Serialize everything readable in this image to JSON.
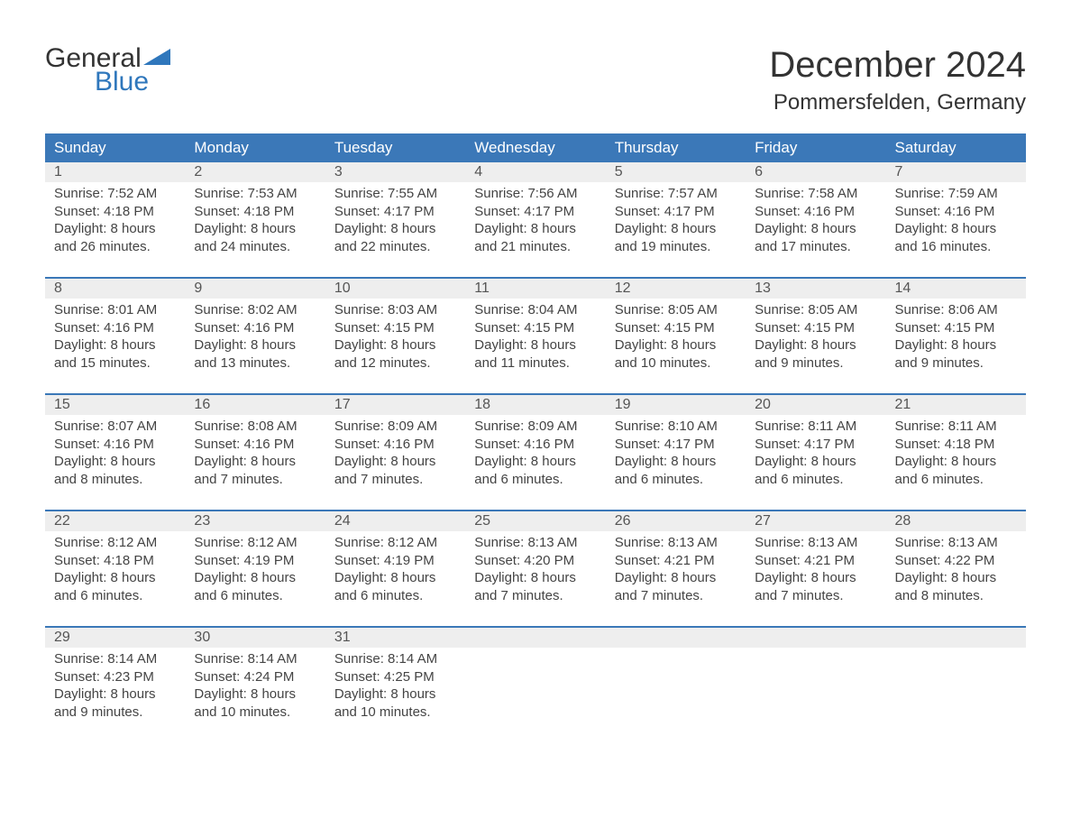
{
  "brand": {
    "part1": "General",
    "part2": "Blue",
    "triangle_color": "#2f77bc"
  },
  "header": {
    "title": "December 2024",
    "location": "Pommersfelden, Germany"
  },
  "colors": {
    "header_bg": "#3b78b8",
    "header_fg": "#ffffff",
    "daynum_bg": "#eeeeee",
    "daynum_fg": "#555555",
    "body_fg": "#444444",
    "rule": "#3b78b8",
    "page_bg": "#ffffff",
    "brand_blue": "#2f77bc",
    "brand_dark": "#333333"
  },
  "typography": {
    "title_fontsize": 40,
    "subtitle_fontsize": 24,
    "weekday_fontsize": 17,
    "daynum_fontsize": 16,
    "body_fontsize": 15
  },
  "weekdays": [
    "Sunday",
    "Monday",
    "Tuesday",
    "Wednesday",
    "Thursday",
    "Friday",
    "Saturday"
  ],
  "weeks": [
    [
      {
        "n": "1",
        "sr": "Sunrise: 7:52 AM",
        "ss": "Sunset: 4:18 PM",
        "d1": "Daylight: 8 hours",
        "d2": "and 26 minutes."
      },
      {
        "n": "2",
        "sr": "Sunrise: 7:53 AM",
        "ss": "Sunset: 4:18 PM",
        "d1": "Daylight: 8 hours",
        "d2": "and 24 minutes."
      },
      {
        "n": "3",
        "sr": "Sunrise: 7:55 AM",
        "ss": "Sunset: 4:17 PM",
        "d1": "Daylight: 8 hours",
        "d2": "and 22 minutes."
      },
      {
        "n": "4",
        "sr": "Sunrise: 7:56 AM",
        "ss": "Sunset: 4:17 PM",
        "d1": "Daylight: 8 hours",
        "d2": "and 21 minutes."
      },
      {
        "n": "5",
        "sr": "Sunrise: 7:57 AM",
        "ss": "Sunset: 4:17 PM",
        "d1": "Daylight: 8 hours",
        "d2": "and 19 minutes."
      },
      {
        "n": "6",
        "sr": "Sunrise: 7:58 AM",
        "ss": "Sunset: 4:16 PM",
        "d1": "Daylight: 8 hours",
        "d2": "and 17 minutes."
      },
      {
        "n": "7",
        "sr": "Sunrise: 7:59 AM",
        "ss": "Sunset: 4:16 PM",
        "d1": "Daylight: 8 hours",
        "d2": "and 16 minutes."
      }
    ],
    [
      {
        "n": "8",
        "sr": "Sunrise: 8:01 AM",
        "ss": "Sunset: 4:16 PM",
        "d1": "Daylight: 8 hours",
        "d2": "and 15 minutes."
      },
      {
        "n": "9",
        "sr": "Sunrise: 8:02 AM",
        "ss": "Sunset: 4:16 PM",
        "d1": "Daylight: 8 hours",
        "d2": "and 13 minutes."
      },
      {
        "n": "10",
        "sr": "Sunrise: 8:03 AM",
        "ss": "Sunset: 4:15 PM",
        "d1": "Daylight: 8 hours",
        "d2": "and 12 minutes."
      },
      {
        "n": "11",
        "sr": "Sunrise: 8:04 AM",
        "ss": "Sunset: 4:15 PM",
        "d1": "Daylight: 8 hours",
        "d2": "and 11 minutes."
      },
      {
        "n": "12",
        "sr": "Sunrise: 8:05 AM",
        "ss": "Sunset: 4:15 PM",
        "d1": "Daylight: 8 hours",
        "d2": "and 10 minutes."
      },
      {
        "n": "13",
        "sr": "Sunrise: 8:05 AM",
        "ss": "Sunset: 4:15 PM",
        "d1": "Daylight: 8 hours",
        "d2": "and 9 minutes."
      },
      {
        "n": "14",
        "sr": "Sunrise: 8:06 AM",
        "ss": "Sunset: 4:15 PM",
        "d1": "Daylight: 8 hours",
        "d2": "and 9 minutes."
      }
    ],
    [
      {
        "n": "15",
        "sr": "Sunrise: 8:07 AM",
        "ss": "Sunset: 4:16 PM",
        "d1": "Daylight: 8 hours",
        "d2": "and 8 minutes."
      },
      {
        "n": "16",
        "sr": "Sunrise: 8:08 AM",
        "ss": "Sunset: 4:16 PM",
        "d1": "Daylight: 8 hours",
        "d2": "and 7 minutes."
      },
      {
        "n": "17",
        "sr": "Sunrise: 8:09 AM",
        "ss": "Sunset: 4:16 PM",
        "d1": "Daylight: 8 hours",
        "d2": "and 7 minutes."
      },
      {
        "n": "18",
        "sr": "Sunrise: 8:09 AM",
        "ss": "Sunset: 4:16 PM",
        "d1": "Daylight: 8 hours",
        "d2": "and 6 minutes."
      },
      {
        "n": "19",
        "sr": "Sunrise: 8:10 AM",
        "ss": "Sunset: 4:17 PM",
        "d1": "Daylight: 8 hours",
        "d2": "and 6 minutes."
      },
      {
        "n": "20",
        "sr": "Sunrise: 8:11 AM",
        "ss": "Sunset: 4:17 PM",
        "d1": "Daylight: 8 hours",
        "d2": "and 6 minutes."
      },
      {
        "n": "21",
        "sr": "Sunrise: 8:11 AM",
        "ss": "Sunset: 4:18 PM",
        "d1": "Daylight: 8 hours",
        "d2": "and 6 minutes."
      }
    ],
    [
      {
        "n": "22",
        "sr": "Sunrise: 8:12 AM",
        "ss": "Sunset: 4:18 PM",
        "d1": "Daylight: 8 hours",
        "d2": "and 6 minutes."
      },
      {
        "n": "23",
        "sr": "Sunrise: 8:12 AM",
        "ss": "Sunset: 4:19 PM",
        "d1": "Daylight: 8 hours",
        "d2": "and 6 minutes."
      },
      {
        "n": "24",
        "sr": "Sunrise: 8:12 AM",
        "ss": "Sunset: 4:19 PM",
        "d1": "Daylight: 8 hours",
        "d2": "and 6 minutes."
      },
      {
        "n": "25",
        "sr": "Sunrise: 8:13 AM",
        "ss": "Sunset: 4:20 PM",
        "d1": "Daylight: 8 hours",
        "d2": "and 7 minutes."
      },
      {
        "n": "26",
        "sr": "Sunrise: 8:13 AM",
        "ss": "Sunset: 4:21 PM",
        "d1": "Daylight: 8 hours",
        "d2": "and 7 minutes."
      },
      {
        "n": "27",
        "sr": "Sunrise: 8:13 AM",
        "ss": "Sunset: 4:21 PM",
        "d1": "Daylight: 8 hours",
        "d2": "and 7 minutes."
      },
      {
        "n": "28",
        "sr": "Sunrise: 8:13 AM",
        "ss": "Sunset: 4:22 PM",
        "d1": "Daylight: 8 hours",
        "d2": "and 8 minutes."
      }
    ],
    [
      {
        "n": "29",
        "sr": "Sunrise: 8:14 AM",
        "ss": "Sunset: 4:23 PM",
        "d1": "Daylight: 8 hours",
        "d2": "and 9 minutes."
      },
      {
        "n": "30",
        "sr": "Sunrise: 8:14 AM",
        "ss": "Sunset: 4:24 PM",
        "d1": "Daylight: 8 hours",
        "d2": "and 10 minutes."
      },
      {
        "n": "31",
        "sr": "Sunrise: 8:14 AM",
        "ss": "Sunset: 4:25 PM",
        "d1": "Daylight: 8 hours",
        "d2": "and 10 minutes."
      },
      null,
      null,
      null,
      null
    ]
  ]
}
